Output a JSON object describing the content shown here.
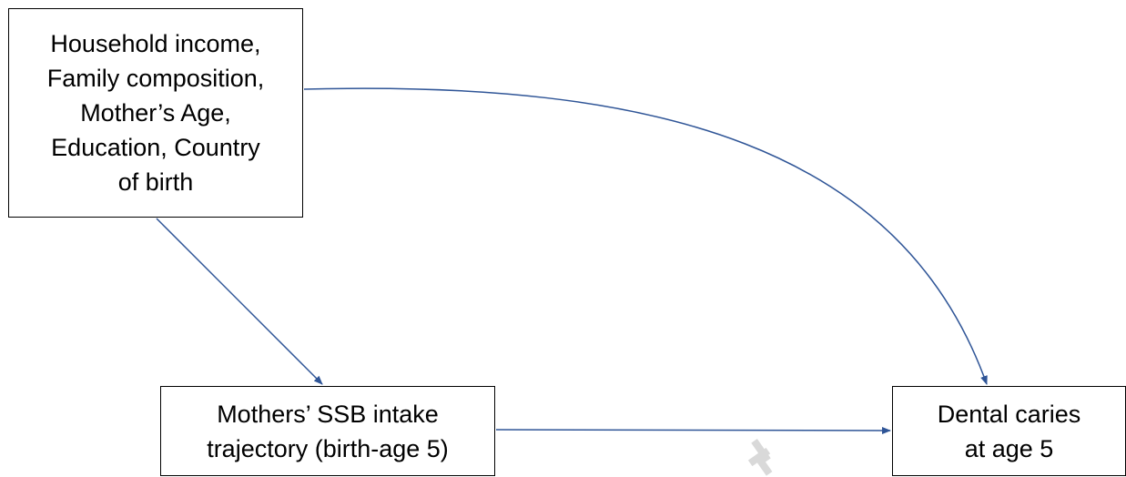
{
  "diagram": {
    "nodes": {
      "confounders": {
        "lines": [
          "Household income,",
          "Family composition,",
          "Mother’s Age,",
          "Education, Country",
          "of birth"
        ]
      },
      "exposure": {
        "lines": [
          "Mothers’ SSB intake",
          "trajectory (birth-age 5)"
        ]
      },
      "outcome": {
        "lines": [
          "Dental caries",
          "at age 5"
        ]
      }
    },
    "edges": [
      {
        "from": "confounders",
        "to": "exposure"
      },
      {
        "from": "confounders",
        "to": "outcome"
      },
      {
        "from": "exposure",
        "to": "outcome"
      }
    ],
    "colors": {
      "arrow": "#2f5597",
      "box_border": "#000000",
      "watermark": "#d9d9d9"
    }
  }
}
